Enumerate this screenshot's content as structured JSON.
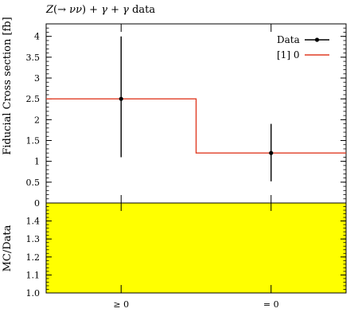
{
  "chart_data": {
    "type": "line",
    "title": "Z(→ νν) + γ + γ data",
    "ylabel": "Fiducial Cross section [fb]",
    "ratio_ylabel": "MC/Data",
    "categories": [
      "≥ 0",
      "= 0"
    ],
    "ylim": [
      0,
      4.3
    ],
    "yticks": [
      0.5,
      1,
      1.5,
      2,
      2.5,
      3,
      3.5,
      4
    ],
    "ytick_labels": [
      "0.5",
      "1",
      "1.5",
      "2",
      "2.5",
      "3",
      "3.5",
      "4"
    ],
    "ratio_ylim": [
      1.0,
      1.5
    ],
    "ratio_yticks": [
      1.0,
      1.1,
      1.2,
      1.3,
      1.4
    ],
    "ratio_ytick_labels": [
      "1.0",
      "1.1",
      "1.2",
      "1.3",
      "1.4"
    ],
    "ratio_top_label": "0",
    "ratio_fill_color": "#ffff00",
    "series": [
      {
        "name": "Data",
        "kind": "points",
        "values": [
          2.5,
          1.2
        ],
        "err_low": [
          1.4,
          0.68
        ],
        "err_high": [
          1.5,
          0.7
        ],
        "color": "#000000"
      },
      {
        "name": "[1] 0",
        "kind": "histogram",
        "values": [
          2.5,
          1.2
        ],
        "color": "#e03c24"
      }
    ],
    "legend_position": "top-right",
    "grid": false
  }
}
